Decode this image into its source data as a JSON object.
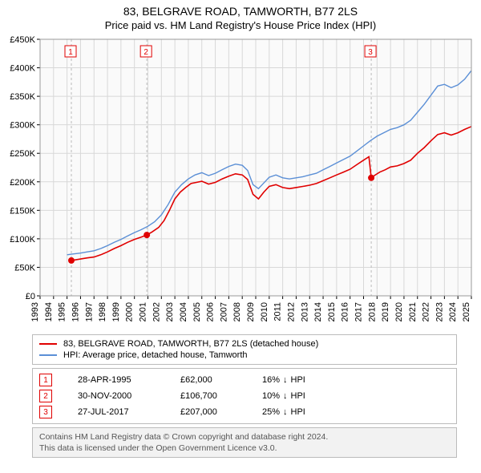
{
  "title1": "83, BELGRAVE ROAD, TAMWORTH, B77 2LS",
  "title2": "Price paid vs. HM Land Registry's House Price Index (HPI)",
  "chart": {
    "type": "line",
    "background_color": "#ffffff",
    "plot_bg": "#fafafa",
    "grid_color": "#d8d8d8",
    "axis_color": "#000000",
    "x": {
      "min": 1993,
      "max": 2025,
      "tick_step": 1
    },
    "y": {
      "min": 0,
      "max": 450000,
      "tick_step": 50000,
      "tick_prefix": "£",
      "tick_suffix": "K",
      "tick_div": 1000
    },
    "marker_line_color": "#bbbbbb",
    "marker_box_border": "#e00000",
    "marker_box_text": "#e00000",
    "series": [
      {
        "name": "red",
        "label": "83, BELGRAVE ROAD, TAMWORTH, B77 2LS (detached house)",
        "color": "#e00000",
        "width": 1.6,
        "data": [
          [
            1995.32,
            62000
          ],
          [
            1995.6,
            63000
          ],
          [
            1996,
            64500
          ],
          [
            1996.5,
            66500
          ],
          [
            1997,
            68000
          ],
          [
            1997.5,
            72000
          ],
          [
            1998,
            77000
          ],
          [
            1998.5,
            83000
          ],
          [
            1999,
            88000
          ],
          [
            1999.5,
            94000
          ],
          [
            2000,
            99000
          ],
          [
            2000.5,
            103000
          ],
          [
            2000.92,
            106700
          ],
          [
            2001.3,
            112000
          ],
          [
            2001.8,
            120000
          ],
          [
            2002.2,
            132000
          ],
          [
            2002.6,
            150000
          ],
          [
            2003,
            170000
          ],
          [
            2003.4,
            182000
          ],
          [
            2003.8,
            190000
          ],
          [
            2004.2,
            197000
          ],
          [
            2004.6,
            199000
          ],
          [
            2005,
            201000
          ],
          [
            2005.5,
            196000
          ],
          [
            2006,
            199000
          ],
          [
            2006.5,
            205000
          ],
          [
            2007,
            210000
          ],
          [
            2007.5,
            214000
          ],
          [
            2008,
            212000
          ],
          [
            2008.4,
            204000
          ],
          [
            2008.8,
            178000
          ],
          [
            2009.2,
            170000
          ],
          [
            2009.6,
            182000
          ],
          [
            2010,
            192000
          ],
          [
            2010.5,
            195000
          ],
          [
            2011,
            190000
          ],
          [
            2011.5,
            188000
          ],
          [
            2012,
            190000
          ],
          [
            2012.5,
            192000
          ],
          [
            2013,
            194000
          ],
          [
            2013.5,
            197000
          ],
          [
            2014,
            202000
          ],
          [
            2014.5,
            207000
          ],
          [
            2015,
            212000
          ],
          [
            2015.5,
            217000
          ],
          [
            2016,
            222000
          ],
          [
            2016.5,
            230000
          ],
          [
            2017,
            238000
          ],
          [
            2017.4,
            244000
          ],
          [
            2017.57,
            207000
          ],
          [
            2017.8,
            211000
          ],
          [
            2018.2,
            217000
          ],
          [
            2018.6,
            221000
          ],
          [
            2019,
            226000
          ],
          [
            2019.5,
            228000
          ],
          [
            2020,
            232000
          ],
          [
            2020.5,
            238000
          ],
          [
            2021,
            250000
          ],
          [
            2021.5,
            260000
          ],
          [
            2022,
            272000
          ],
          [
            2022.5,
            283000
          ],
          [
            2023,
            286000
          ],
          [
            2023.5,
            282000
          ],
          [
            2024,
            286000
          ],
          [
            2024.5,
            292000
          ],
          [
            2025,
            297000
          ]
        ]
      },
      {
        "name": "blue",
        "label": "HPI: Average price, detached house, Tamworth",
        "color": "#5b8fd6",
        "width": 1.4,
        "data": [
          [
            1995.0,
            72000
          ],
          [
            1995.5,
            73500
          ],
          [
            1996,
            75000
          ],
          [
            1996.5,
            77000
          ],
          [
            1997,
            79000
          ],
          [
            1997.5,
            83000
          ],
          [
            1998,
            88000
          ],
          [
            1998.5,
            94000
          ],
          [
            1999,
            99000
          ],
          [
            1999.5,
            105000
          ],
          [
            2000,
            111000
          ],
          [
            2000.5,
            116000
          ],
          [
            2001,
            122000
          ],
          [
            2001.5,
            130000
          ],
          [
            2002,
            142000
          ],
          [
            2002.5,
            160000
          ],
          [
            2003,
            182000
          ],
          [
            2003.5,
            195000
          ],
          [
            2004,
            205000
          ],
          [
            2004.5,
            212000
          ],
          [
            2005,
            216000
          ],
          [
            2005.5,
            211000
          ],
          [
            2006,
            215000
          ],
          [
            2006.5,
            221000
          ],
          [
            2007,
            227000
          ],
          [
            2007.5,
            231000
          ],
          [
            2008,
            229000
          ],
          [
            2008.4,
            220000
          ],
          [
            2008.8,
            195000
          ],
          [
            2009.2,
            188000
          ],
          [
            2009.6,
            198000
          ],
          [
            2010,
            208000
          ],
          [
            2010.5,
            212000
          ],
          [
            2011,
            207000
          ],
          [
            2011.5,
            205000
          ],
          [
            2012,
            207000
          ],
          [
            2012.5,
            209000
          ],
          [
            2013,
            212000
          ],
          [
            2013.5,
            215000
          ],
          [
            2014,
            221000
          ],
          [
            2014.5,
            227000
          ],
          [
            2015,
            233000
          ],
          [
            2015.5,
            239000
          ],
          [
            2016,
            245000
          ],
          [
            2016.5,
            254000
          ],
          [
            2017,
            263000
          ],
          [
            2017.5,
            272000
          ],
          [
            2018,
            280000
          ],
          [
            2018.5,
            286000
          ],
          [
            2019,
            292000
          ],
          [
            2019.5,
            295000
          ],
          [
            2020,
            300000
          ],
          [
            2020.5,
            308000
          ],
          [
            2021,
            322000
          ],
          [
            2021.5,
            336000
          ],
          [
            2022,
            352000
          ],
          [
            2022.5,
            368000
          ],
          [
            2023,
            371000
          ],
          [
            2023.5,
            365000
          ],
          [
            2024,
            370000
          ],
          [
            2024.5,
            380000
          ],
          [
            2025,
            395000
          ]
        ]
      }
    ],
    "sale_markers": [
      {
        "n": 1,
        "year": 1995.32,
        "price": 62000,
        "date": "28-APR-1995",
        "price_label": "£62,000",
        "hpi_pct": "16%",
        "hpi_dir": "down"
      },
      {
        "n": 2,
        "year": 2000.92,
        "price": 106700,
        "date": "30-NOV-2000",
        "price_label": "£106,700",
        "hpi_pct": "10%",
        "hpi_dir": "down"
      },
      {
        "n": 3,
        "year": 2017.57,
        "price": 207000,
        "date": "27-JUL-2017",
        "price_label": "£207,000",
        "hpi_pct": "25%",
        "hpi_dir": "down"
      }
    ]
  },
  "hpi_word": "HPI",
  "footer_line1": "Contains HM Land Registry data © Crown copyright and database right 2024.",
  "footer_line2": "This data is licensed under the Open Government Licence v3.0."
}
